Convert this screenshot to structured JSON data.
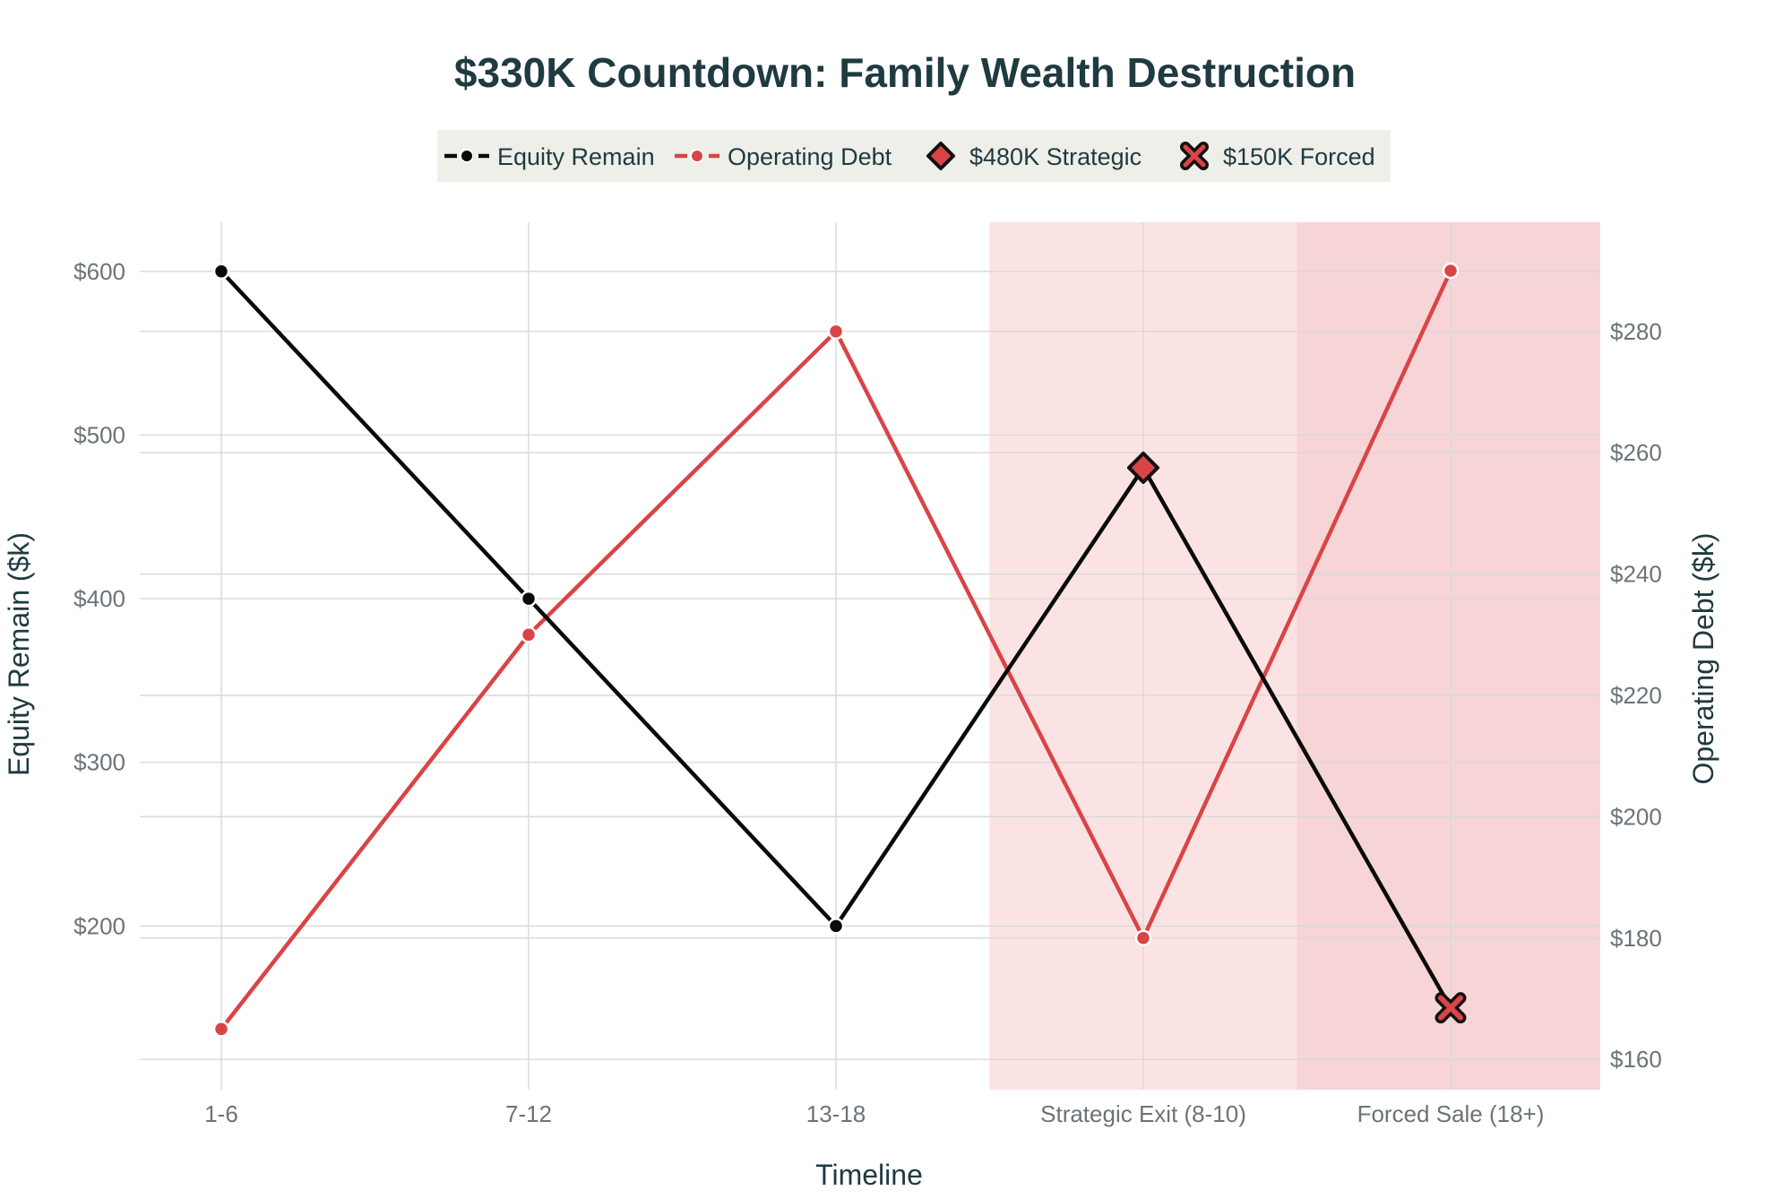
{
  "chart_data": {
    "type": "line",
    "title": "$330K Countdown: Family Wealth Destruction",
    "xlabel": "Timeline",
    "ylabel_left": "Equity Remain ($k)",
    "ylabel_right": "Operating Debt ($k)",
    "categories": [
      "1-6",
      "7-12",
      "13-18",
      "Strategic Exit (8-10)",
      "Forced Sale (18+)"
    ],
    "y_left": {
      "range": [
        100,
        630
      ],
      "ticks": [
        200,
        300,
        400,
        500,
        600
      ],
      "tick_labels": [
        "$200",
        "$300",
        "$400",
        "$500",
        "$600"
      ]
    },
    "y_right": {
      "range": [
        155,
        298
      ],
      "ticks": [
        160,
        180,
        200,
        220,
        240,
        260,
        280
      ],
      "tick_labels": [
        "$160",
        "$180",
        "$200",
        "$220",
        "$240",
        "$260",
        "$280"
      ]
    },
    "series": [
      {
        "name": "Equity Remain",
        "axis": "left",
        "color": "#0a0a0a",
        "values": [
          600,
          400,
          200,
          480,
          150
        ]
      },
      {
        "name": "Operating Debt",
        "axis": "right",
        "color": "#d94446",
        "values": [
          165,
          230,
          280,
          180,
          290
        ]
      }
    ],
    "markers": [
      {
        "name": "$480K Strategic",
        "symbol": "diamond",
        "category": "Strategic Exit (8-10)",
        "value": 480,
        "fill": "#d94446",
        "stroke": "#111111"
      },
      {
        "name": "$150K Forced",
        "symbol": "x",
        "category": "Forced Sale (18+)",
        "value": 150,
        "fill": "#d94446",
        "stroke": "#111111"
      }
    ],
    "shaded_regions": [
      {
        "category": "Strategic Exit (8-10)",
        "color": "#fbe3e3"
      },
      {
        "category": "Forced Sale (18+)",
        "color": "#f7d4d6"
      }
    ],
    "legend": {
      "placement": "top-center",
      "background": "#eeefe8"
    },
    "grid": true
  }
}
